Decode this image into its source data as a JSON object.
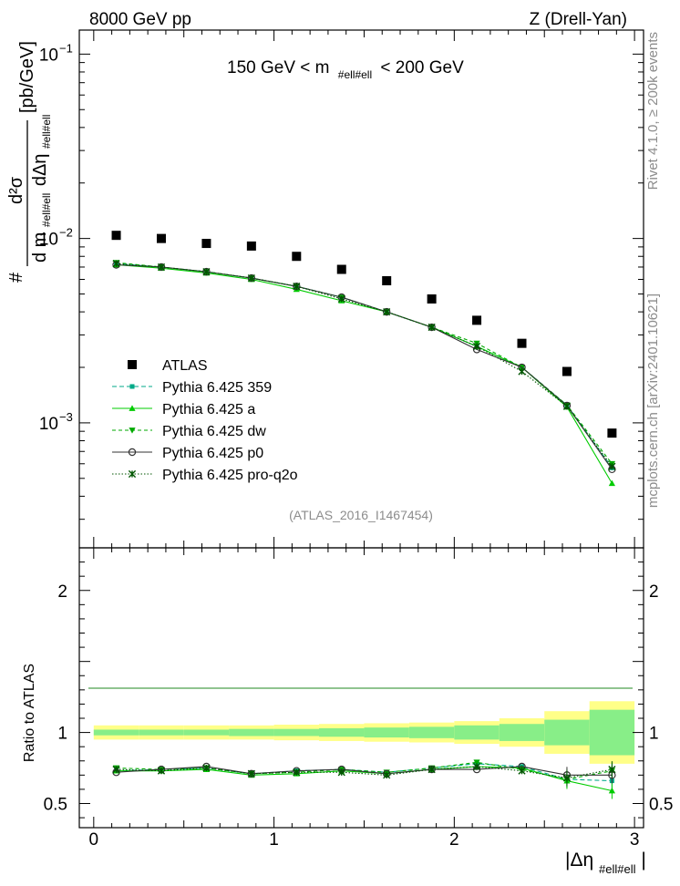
{
  "header": {
    "left": "8000 GeV pp",
    "right": "Z (Drell-Yan)"
  },
  "side_labels": {
    "rivet": "Rivet 4.1.0, ≥ 200k events",
    "mcplots": "mcplots.cern.ch [arXiv:2401.10621]"
  },
  "colors": {
    "atlas": "#000000",
    "p359": "#00aa88",
    "pa": "#00cc00",
    "pdw": "#00aa00",
    "pp0": "#333333",
    "pq2o": "#005500",
    "band_yellow": "#ffff88",
    "band_green": "#88ee88"
  },
  "chart_data": [
    {
      "type": "scatter",
      "panel": "main",
      "title": "150 GeV < m #ell#ell < 200 GeV",
      "title_parts": {
        "prefix": "150 GeV < m",
        "sub": "#ell#ell",
        "suffix": "< 200 GeV"
      },
      "ylabel_parts": {
        "hash": "#",
        "num": "d²σ",
        "den_d": "d m",
        "den_sub": "#ell#ell",
        "den_deta": "dΔη",
        "den_sub2": "#ell#ell",
        "unit": "[pb/GeV]"
      },
      "yscale": "log",
      "ylim": [
        0.00021,
        0.135
      ],
      "xlim": [
        -0.08,
        3.05
      ],
      "y_ticks": [
        {
          "value": 0.1,
          "base": "10",
          "exp": "−1"
        },
        {
          "value": 0.01,
          "base": "10",
          "exp": "−2"
        },
        {
          "value": 0.001,
          "base": "10",
          "exp": "−3"
        }
      ],
      "x": [
        0.125,
        0.375,
        0.625,
        0.875,
        1.125,
        1.375,
        1.625,
        1.875,
        2.125,
        2.375,
        2.625,
        2.875
      ],
      "series": [
        {
          "name": "ATLAS",
          "marker": "square",
          "color": "#000000",
          "values": [
            0.0104,
            0.01,
            0.0094,
            0.0091,
            0.008,
            0.0068,
            0.0059,
            0.0047,
            0.0036,
            0.0027,
            0.0019,
            0.00088
          ]
        },
        {
          "name": "Pythia 6.425 359",
          "marker": "square-small",
          "line": "dashed",
          "color": "#00aa88",
          "values": [
            0.0073,
            0.007,
            0.0066,
            0.0061,
            0.0055,
            0.0048,
            0.004,
            0.0033,
            0.0026,
            0.002,
            0.00125,
            0.00057
          ]
        },
        {
          "name": "Pythia 6.425 a",
          "marker": "triangle-up",
          "line": "solid",
          "color": "#00cc00",
          "values": [
            0.0072,
            0.0069,
            0.0065,
            0.006,
            0.0053,
            0.0046,
            0.004,
            0.0033,
            0.0026,
            0.002,
            0.00122,
            0.00047
          ]
        },
        {
          "name": "Pythia 6.425 dw",
          "marker": "triangle-down",
          "line": "dashed",
          "color": "#00aa00",
          "values": [
            0.0074,
            0.007,
            0.0066,
            0.0061,
            0.0055,
            0.0048,
            0.004,
            0.0033,
            0.0027,
            0.002,
            0.00125,
            0.0006
          ]
        },
        {
          "name": "Pythia 6.425 p0",
          "marker": "circle-open",
          "line": "solid",
          "color": "#333333",
          "values": [
            0.0072,
            0.007,
            0.0066,
            0.0061,
            0.0055,
            0.0048,
            0.004,
            0.0033,
            0.0025,
            0.002,
            0.00124,
            0.00056
          ]
        },
        {
          "name": "Pythia 6.425 pro-q2o",
          "marker": "star",
          "line": "dotted",
          "color": "#005500",
          "values": [
            0.0073,
            0.007,
            0.0066,
            0.0061,
            0.0055,
            0.0047,
            0.004,
            0.0033,
            0.0026,
            0.0019,
            0.00123,
            0.00058
          ]
        }
      ],
      "legend_position": "lower-left",
      "annotation": "(ATLAS_2016_I1467454)"
    },
    {
      "type": "line",
      "panel": "ratio",
      "ylabel": "Ratio to ATLAS",
      "xlabel_parts": {
        "main": "|Δη",
        "sub": "#ell#ell",
        "end": "|"
      },
      "ylim": [
        0.33,
        2.3
      ],
      "xlim": [
        -0.08,
        3.05
      ],
      "y_ticks": [
        "0.5",
        "1",
        "2"
      ],
      "x_ticks": [
        "0",
        "1",
        "2",
        "3"
      ],
      "bin_edges": [
        0.0,
        0.25,
        0.5,
        0.75,
        1.0,
        1.25,
        1.5,
        1.75,
        2.0,
        2.25,
        2.5,
        2.75,
        3.0
      ],
      "band_total": [
        0.05,
        0.05,
        0.05,
        0.05,
        0.05,
        0.055,
        0.06,
        0.065,
        0.07,
        0.08,
        0.1,
        0.15,
        0.22
      ],
      "band_stat": [
        0.02,
        0.02,
        0.02,
        0.02,
        0.025,
        0.025,
        0.03,
        0.035,
        0.04,
        0.05,
        0.06,
        0.09,
        0.16
      ],
      "x": [
        0.125,
        0.375,
        0.625,
        0.875,
        1.125,
        1.375,
        1.625,
        1.875,
        2.125,
        2.375,
        2.625,
        2.875
      ],
      "series": [
        {
          "name": "Pythia 6.425 359",
          "values": [
            0.73,
            0.74,
            0.75,
            0.71,
            0.73,
            0.74,
            0.72,
            0.75,
            0.78,
            0.76,
            0.67,
            0.66
          ]
        },
        {
          "name": "Pythia 6.425 a",
          "values": [
            0.73,
            0.73,
            0.74,
            0.7,
            0.71,
            0.73,
            0.71,
            0.74,
            0.76,
            0.75,
            0.66,
            0.59
          ]
        },
        {
          "name": "Pythia 6.425 dw",
          "values": [
            0.75,
            0.74,
            0.75,
            0.71,
            0.72,
            0.74,
            0.72,
            0.75,
            0.79,
            0.74,
            0.67,
            0.73
          ]
        },
        {
          "name": "Pythia 6.425 p0",
          "values": [
            0.72,
            0.74,
            0.76,
            0.71,
            0.73,
            0.74,
            0.71,
            0.74,
            0.74,
            0.76,
            0.7,
            0.7
          ]
        },
        {
          "name": "Pythia 6.425 pro-q2o",
          "values": [
            0.74,
            0.73,
            0.75,
            0.71,
            0.72,
            0.72,
            0.7,
            0.74,
            0.76,
            0.73,
            0.68,
            0.74
          ]
        }
      ]
    }
  ]
}
